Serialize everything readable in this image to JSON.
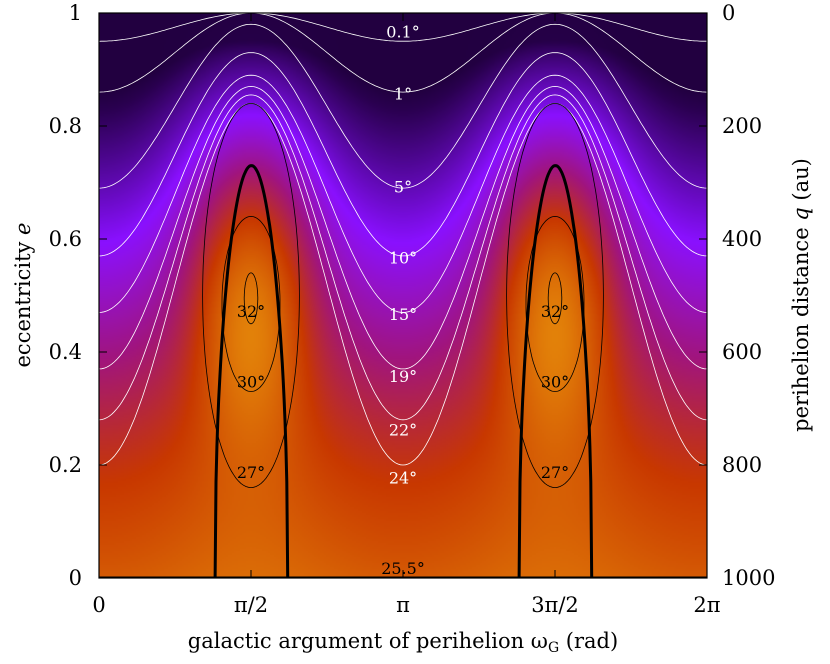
{
  "chart_data": {
    "type": "heatmap",
    "xlabel": "galactic argument of perihelion ω",
    "xlabel_sub": "G",
    "xlabel_unit": " (rad)",
    "ylabel": "eccentricity ",
    "ylabel_var": "e",
    "y2label": "perihelion distance ",
    "y2label_var": "q",
    "y2label_unit": " (au)",
    "x_range": [
      0,
      6.2832
    ],
    "y_range": [
      0,
      1
    ],
    "x_ticks": [
      {
        "value": 0,
        "label": "0"
      },
      {
        "value": 1.5708,
        "label": "π/2"
      },
      {
        "value": 3.1416,
        "label": "π"
      },
      {
        "value": 4.7124,
        "label": "3π/2"
      },
      {
        "value": 6.2832,
        "label": "2π"
      }
    ],
    "y_ticks": [
      {
        "value": 0,
        "label": "0"
      },
      {
        "value": 0.2,
        "label": "0.2"
      },
      {
        "value": 0.4,
        "label": "0.4"
      },
      {
        "value": 0.6,
        "label": "0.6"
      },
      {
        "value": 0.8,
        "label": "0.8"
      },
      {
        "value": 1,
        "label": "1"
      }
    ],
    "y2_ticks": [
      {
        "value": 0,
        "e": 1.0,
        "label": "0"
      },
      {
        "value": 200,
        "e": 0.8,
        "label": "200"
      },
      {
        "value": 400,
        "e": 0.6,
        "label": "400"
      },
      {
        "value": 600,
        "e": 0.4,
        "label": "600"
      },
      {
        "value": 800,
        "e": 0.2,
        "label": "800"
      },
      {
        "value": 1000,
        "e": 0.0,
        "label": "1000"
      }
    ],
    "colormap": [
      "#000000",
      "#2a0050",
      "#8a10ff",
      "#a01480",
      "#c83800",
      "#e07a08",
      "#f2b010",
      "#fff200"
    ],
    "white_contours": [
      {
        "level_deg": 0.1,
        "e_at_pi": 0.95,
        "e_at_pi2": 1.0
      },
      {
        "level_deg": 1,
        "e_at_pi": 0.86,
        "e_at_pi2": 1.0
      },
      {
        "level_deg": 5,
        "e_at_pi": 0.69,
        "e_at_pi2": 0.98
      },
      {
        "level_deg": 10,
        "e_at_pi": 0.57,
        "e_at_pi2": 0.93
      },
      {
        "level_deg": 15,
        "e_at_pi": 0.47,
        "e_at_pi2": 0.89
      },
      {
        "level_deg": 19,
        "e_at_pi": 0.37,
        "e_at_pi2": 0.87
      },
      {
        "level_deg": 22,
        "e_at_pi": 0.28,
        "e_at_pi2": 0.855
      },
      {
        "level_deg": 24,
        "e_at_pi": 0.2,
        "e_at_pi2": 0.84
      }
    ],
    "boundary_contour": {
      "level_deg": 25.5,
      "x_start": 1.2,
      "x_end": 1.95,
      "peak_e": 0.73
    },
    "black_contours": [
      {
        "level_deg": 27,
        "half_width": 0.5,
        "e_min": 0.16,
        "e_max": 0.84
      },
      {
        "level_deg": 30,
        "half_width": 0.3,
        "e_min": 0.33,
        "e_max": 0.64
      },
      {
        "level_deg": 32,
        "half_width": 0.07,
        "e_min": 0.45,
        "e_max": 0.54
      }
    ],
    "labels": [
      {
        "text": "0.1°",
        "x": 3.1416,
        "e": 0.965,
        "color": "#ffffff"
      },
      {
        "text": "1°",
        "x": 3.1416,
        "e": 0.855,
        "color": "#ffffff"
      },
      {
        "text": "5°",
        "x": 3.1416,
        "e": 0.69,
        "color": "#ffffff"
      },
      {
        "text": "10°",
        "x": 3.1416,
        "e": 0.565,
        "color": "#ffffff"
      },
      {
        "text": "15°",
        "x": 3.1416,
        "e": 0.465,
        "color": "#ffffff"
      },
      {
        "text": "19°",
        "x": 3.1416,
        "e": 0.355,
        "color": "#ffffff"
      },
      {
        "text": "22°",
        "x": 3.1416,
        "e": 0.26,
        "color": "#ffffff"
      },
      {
        "text": "24°",
        "x": 3.1416,
        "e": 0.175,
        "color": "#ffffff"
      },
      {
        "text": "25.5°",
        "x": 3.1416,
        "e": 0.015,
        "color": "#000000"
      },
      {
        "text": "32°",
        "x": 1.5708,
        "e": 0.47,
        "color": "#000000"
      },
      {
        "text": "30°",
        "x": 1.5708,
        "e": 0.345,
        "color": "#000000"
      },
      {
        "text": "27°",
        "x": 1.5708,
        "e": 0.185,
        "color": "#000000"
      },
      {
        "text": "32°",
        "x": 4.7124,
        "e": 0.47,
        "color": "#000000"
      },
      {
        "text": "30°",
        "x": 4.7124,
        "e": 0.345,
        "color": "#000000"
      },
      {
        "text": "27°",
        "x": 4.7124,
        "e": 0.185,
        "color": "#000000"
      }
    ]
  }
}
